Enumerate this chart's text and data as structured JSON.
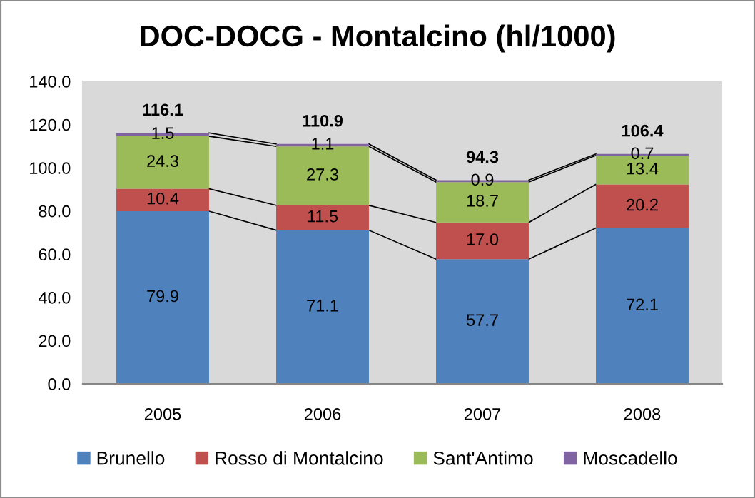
{
  "chart_data": {
    "type": "bar",
    "title": "DOC-DOCG - Montalcino (hl/1000)",
    "categories": [
      "2005",
      "2006",
      "2007",
      "2008"
    ],
    "stacked": true,
    "series": [
      {
        "name": "Brunello",
        "color": "#4f81bd",
        "values": [
          79.9,
          71.1,
          57.7,
          72.1
        ],
        "value_labels": [
          "79.9",
          "71.1",
          "57.7",
          "72.1"
        ]
      },
      {
        "name": "Rosso di Montalcino",
        "color": "#c0504d",
        "values": [
          10.4,
          11.5,
          17.0,
          20.2
        ],
        "value_labels": [
          "10.4",
          "11.5",
          "17.0",
          "20.2"
        ]
      },
      {
        "name": "Sant'Antimo",
        "color": "#9bbb59",
        "values": [
          24.3,
          27.3,
          18.7,
          13.4
        ],
        "value_labels": [
          "24.3",
          "27.3",
          "18.7",
          "13.4"
        ]
      },
      {
        "name": "Moscadello",
        "color": "#8064a2",
        "values": [
          1.5,
          1.1,
          0.9,
          0.7
        ],
        "value_labels": [
          "1.5",
          "1.1",
          "0.9",
          "0.7"
        ]
      }
    ],
    "ylim": [
      0,
      140
    ],
    "yticks": [
      {
        "value": 0,
        "label": "0.0"
      },
      {
        "value": 20,
        "label": "20.0"
      },
      {
        "value": 40,
        "label": "40.0"
      },
      {
        "value": 60,
        "label": "60.0"
      },
      {
        "value": 80,
        "label": "80.0"
      },
      {
        "value": 100,
        "label": "100.0"
      },
      {
        "value": 120,
        "label": "120.0"
      },
      {
        "value": 140,
        "label": "140.0"
      }
    ],
    "totals": [
      "116.1",
      "110.9",
      "94.3",
      "106.4"
    ],
    "grid": false,
    "legend": "bottom"
  }
}
